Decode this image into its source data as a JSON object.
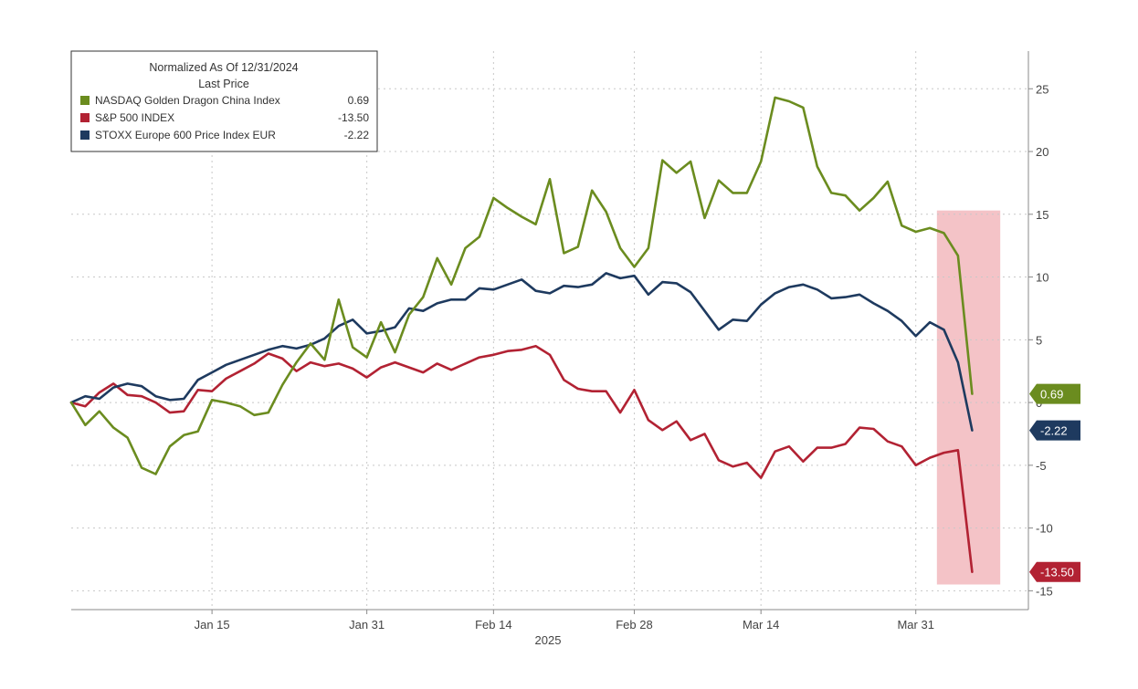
{
  "chart_data": {
    "type": "line",
    "legend": {
      "title_line1": "Normalized As Of 12/31/2024",
      "title_line2": "Last Price",
      "placement": "top-left"
    },
    "xlabel": "2025",
    "x_ticks": [
      "Jan 15",
      "Jan 31",
      "Feb 14",
      "Feb 28",
      "Mar 14",
      "Mar 31"
    ],
    "x_tick_index": [
      10,
      21,
      30,
      40,
      49,
      60
    ],
    "x_range_index": [
      0,
      68
    ],
    "ylim": [
      -16.5,
      28
    ],
    "y_ticks": [
      -15,
      -10,
      -5,
      0,
      5,
      10,
      15,
      20,
      25
    ],
    "y_tick_labels": [
      "-15",
      "-10",
      "-5",
      "0",
      "5",
      "10",
      "15",
      "20",
      "25"
    ],
    "grid": true,
    "highlight": {
      "start_index": 61.5,
      "end_index": 66,
      "ymin": -14.5,
      "ymax": 15.3,
      "color": "#f2b8bd"
    },
    "series": [
      {
        "name": "NASDAQ Golden Dragon China Index",
        "last_label": "0.69",
        "color": "#6b8c1f",
        "values": [
          0,
          -1.8,
          -0.7,
          -2,
          -2.8,
          -5.2,
          -5.7,
          -3.5,
          -2.6,
          -2.3,
          0.2,
          0,
          -0.3,
          -1,
          -0.8,
          1.4,
          3.2,
          4.7,
          3.4,
          8.2,
          4.4,
          3.6,
          6.4,
          4,
          7,
          8.4,
          11.5,
          9.4,
          12.3,
          13.2,
          16.3,
          15.5,
          14.8,
          14.2,
          17.8,
          11.9,
          12.4,
          16.9,
          15.2,
          12.3,
          10.8,
          12.3,
          19.3,
          18.3,
          19.2,
          14.7,
          17.7,
          16.7,
          16.7,
          19.2,
          24.3,
          24,
          23.5,
          18.8,
          16.7,
          16.5,
          15.3,
          16.3,
          17.6,
          14.1,
          13.6,
          13.9,
          13.5,
          11.7,
          0.69
        ]
      },
      {
        "name": "S&P 500 INDEX",
        "last_label": "-13.50",
        "color": "#b22233",
        "values": [
          0,
          -0.3,
          0.8,
          1.5,
          0.6,
          0.5,
          0,
          -0.8,
          -0.7,
          1,
          0.9,
          1.9,
          2.5,
          3.1,
          3.9,
          3.5,
          2.5,
          3.2,
          2.9,
          3.1,
          2.7,
          2,
          2.8,
          3.2,
          2.8,
          2.4,
          3.1,
          2.6,
          3.1,
          3.6,
          3.8,
          4.1,
          4.2,
          4.5,
          3.8,
          1.8,
          1.1,
          0.9,
          0.9,
          -0.8,
          1,
          -1.4,
          -2.2,
          -1.5,
          -3,
          -2.5,
          -4.6,
          -5.1,
          -4.8,
          -6,
          -3.9,
          -3.5,
          -4.7,
          -3.6,
          -3.6,
          -3.3,
          -2,
          -2.1,
          -3.1,
          -3.5,
          -5,
          -4.4,
          -4,
          -3.8,
          -13.5
        ]
      },
      {
        "name": "STOXX Europe 600 Price Index EUR",
        "last_label": "-2.22",
        "color": "#1e3a5f",
        "values": [
          0,
          0.5,
          0.3,
          1.2,
          1.5,
          1.3,
          0.5,
          0.2,
          0.3,
          1.8,
          2.4,
          3,
          3.4,
          3.8,
          4.2,
          4.5,
          4.3,
          4.6,
          5.1,
          6.1,
          6.6,
          5.5,
          5.7,
          6,
          7.5,
          7.3,
          7.9,
          8.2,
          8.2,
          9.1,
          9,
          9.4,
          9.8,
          8.9,
          8.7,
          9.3,
          9.2,
          9.4,
          10.3,
          9.9,
          10.1,
          8.6,
          9.6,
          9.5,
          8.8,
          7.3,
          5.8,
          6.6,
          6.5,
          7.8,
          8.7,
          9.2,
          9.4,
          9,
          8.3,
          8.4,
          8.6,
          7.9,
          7.3,
          6.5,
          5.3,
          6.4,
          5.8,
          3.2,
          -2.22
        ]
      }
    ]
  }
}
